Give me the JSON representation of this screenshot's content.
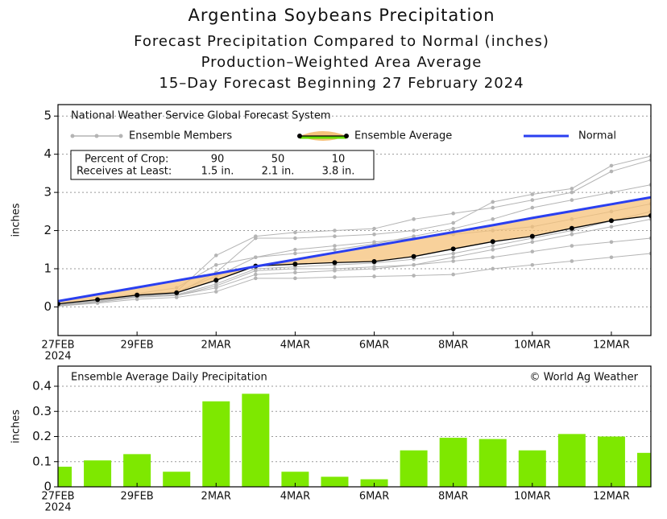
{
  "chart_data": [
    {
      "type": "line",
      "title": "Argentina Soybeans Precipitation",
      "subtitle": [
        "Forecast Precipitation Compared to Normal (inches)",
        "Production–Weighted Area Average",
        "15–Day Forecast Beginning 27 February 2024"
      ],
      "panel_title": "National Weather Service Global Forecast System",
      "ylabel": "inches",
      "categories": [
        "27FEB",
        null,
        "29FEB",
        null,
        "2MAR",
        null,
        "4MAR",
        null,
        "6MAR",
        null,
        "8MAR",
        null,
        "10MAR",
        null,
        "12MAR",
        null
      ],
      "category_year": "2024",
      "ylim": [
        -0.75,
        5.3
      ],
      "yticks": [
        0,
        1,
        2,
        3,
        4,
        5
      ],
      "grid": true,
      "members": {
        "name": "Ensemble Members",
        "color": "#b4b4b4",
        "series": [
          [
            0.05,
            0.15,
            0.3,
            0.4,
            1.35,
            1.85,
            1.95,
            2.0,
            2.05,
            2.3,
            2.45,
            2.6,
            2.8,
            3.0,
            3.55,
            3.85
          ],
          [
            0.05,
            0.2,
            0.3,
            0.35,
            0.9,
            1.8,
            1.8,
            1.85,
            1.9,
            2.0,
            2.2,
            2.75,
            2.95,
            3.1,
            3.7,
            3.95
          ],
          [
            0.03,
            0.12,
            0.25,
            0.3,
            0.5,
            0.85,
            0.9,
            0.95,
            1.0,
            1.1,
            1.3,
            1.5,
            1.7,
            1.9,
            2.1,
            2.3
          ],
          [
            0.02,
            0.1,
            0.2,
            0.25,
            0.4,
            0.75,
            0.75,
            0.78,
            0.8,
            0.82,
            0.85,
            1.0,
            1.1,
            1.2,
            1.3,
            1.4
          ],
          [
            0.05,
            0.18,
            0.32,
            0.4,
            0.8,
            1.3,
            1.4,
            1.5,
            1.65,
            1.85,
            2.05,
            2.3,
            2.6,
            2.8,
            3.0,
            3.2
          ],
          [
            0.04,
            0.15,
            0.28,
            0.32,
            0.6,
            1.0,
            1.05,
            1.1,
            1.15,
            1.25,
            1.4,
            1.6,
            1.8,
            2.0,
            2.25,
            2.5
          ],
          [
            0.06,
            0.2,
            0.35,
            0.5,
            1.1,
            1.3,
            1.5,
            1.6,
            1.7,
            1.8,
            1.9,
            2.0,
            2.1,
            2.3,
            2.5,
            2.7
          ],
          [
            0.03,
            0.14,
            0.27,
            0.3,
            0.55,
            0.95,
            1.0,
            1.0,
            1.05,
            1.1,
            1.2,
            1.3,
            1.45,
            1.6,
            1.7,
            1.8
          ]
        ]
      },
      "series": [
        {
          "name": "Ensemble Average",
          "color": "#000000",
          "fill_color": "#f5c27a",
          "icon_color": "#66dd00",
          "values": [
            0.08,
            0.19,
            0.31,
            0.37,
            0.7,
            1.07,
            1.12,
            1.16,
            1.19,
            1.32,
            1.52,
            1.71,
            1.85,
            2.06,
            2.26,
            2.39
          ]
        },
        {
          "name": "Normal",
          "color": "#2a3ff0",
          "values": [
            0.15,
            0.33,
            0.51,
            0.69,
            0.87,
            1.06,
            1.24,
            1.42,
            1.6,
            1.78,
            1.96,
            2.14,
            2.33,
            2.51,
            2.69,
            2.87
          ]
        }
      ],
      "crop_table": {
        "row_labels": [
          "Percent of Crop:",
          "Receives at Least:"
        ],
        "percent": [
          90,
          50,
          10
        ],
        "amounts": [
          "1.5 in.",
          "2.1 in.",
          "3.8 in."
        ]
      }
    },
    {
      "type": "bar",
      "panel_title": "Ensemble Average Daily Precipitation",
      "credit": "© World Ag Weather",
      "ylabel": "inches",
      "categories": [
        "27FEB",
        null,
        "29FEB",
        null,
        "2MAR",
        null,
        "4MAR",
        null,
        "6MAR",
        null,
        "8MAR",
        null,
        "10MAR",
        null,
        "12MAR",
        null
      ],
      "category_year": "2024",
      "values": [
        0.08,
        0.105,
        0.13,
        0.06,
        0.34,
        0.37,
        0.06,
        0.04,
        0.03,
        0.145,
        0.195,
        0.19,
        0.145,
        0.21,
        0.2,
        0.135
      ],
      "color": "#7ee800",
      "ylim": [
        0,
        0.48
      ],
      "yticks": [
        0,
        0.1,
        0.2,
        0.3,
        0.4
      ],
      "grid": true
    }
  ]
}
